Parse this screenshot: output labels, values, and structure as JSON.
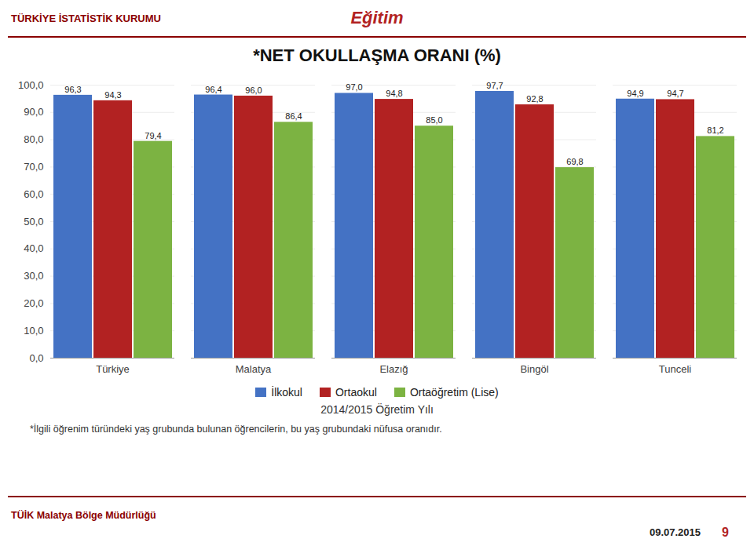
{
  "chart_data": {
    "type": "bar",
    "title": "*NET OKULLAŞMA ORANI (%)",
    "subtitle": "2014/2015 Öğretim Yılı",
    "annotations": [
      "TÜRKİYE İSTATİSTİK KURUMU",
      "Eğitim",
      "*İlgili öğrenim türündeki yaş grubunda bulunan öğrencilerin, bu yaş grubundaki nüfusa oranıdır.",
      "TÜİK Malatya Bölge Müdürlüğü",
      "09.07.2015",
      "9"
    ],
    "categories": [
      "Türkiye",
      "Malatya",
      "Elazığ",
      "Bingöl",
      "Tunceli"
    ],
    "series": [
      {
        "name": "İlkokul",
        "color": "#4472C4",
        "values": [
          96.3,
          96.4,
          97.0,
          97.7,
          94.9
        ],
        "value_labels": [
          "96,3",
          "96,4",
          "97,0",
          "97,7",
          "94,9"
        ]
      },
      {
        "name": "Ortaokul",
        "color": "#B22222",
        "values": [
          94.3,
          96.0,
          94.8,
          92.8,
          94.7
        ],
        "value_labels": [
          "94,3",
          "96,0",
          "94,8",
          "92,8",
          "94,7"
        ]
      },
      {
        "name": "Ortaöğretim (Lise)",
        "color": "#7CB342",
        "values": [
          79.4,
          86.4,
          85.0,
          69.8,
          81.2
        ],
        "value_labels": [
          "79,4",
          "86,4",
          "85,0",
          "69,8",
          "81,2"
        ]
      }
    ],
    "ylim": [
      0,
      100
    ],
    "yticks": [
      {
        "value": 0,
        "label": "0,0"
      },
      {
        "value": 10,
        "label": "10,0"
      },
      {
        "value": 20,
        "label": "20,0"
      },
      {
        "value": 30,
        "label": "30,0"
      },
      {
        "value": 40,
        "label": "40,0"
      },
      {
        "value": 50,
        "label": "50,0"
      },
      {
        "value": 60,
        "label": "60,0"
      },
      {
        "value": 70,
        "label": "70,0"
      },
      {
        "value": 80,
        "label": "80,0"
      },
      {
        "value": 90,
        "label": "90,0"
      },
      {
        "value": 100,
        "label": "100,0"
      }
    ],
    "grid": true,
    "data_labels": true,
    "legend": "bottom"
  }
}
